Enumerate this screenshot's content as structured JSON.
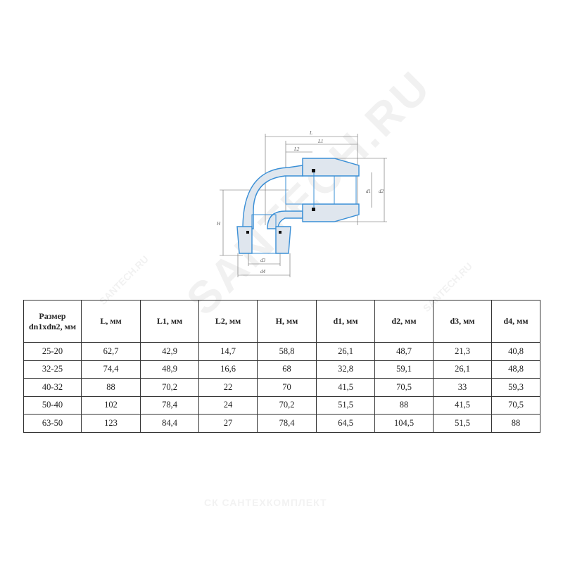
{
  "drawing": {
    "labels": {
      "L": "L",
      "L1": "L1",
      "L2": "L2",
      "H": "H",
      "d1": "d1",
      "d2": "d2",
      "d3": "d3",
      "d4": "d4"
    },
    "colors": {
      "outline": "#3a8fd6",
      "hatch": "#b9c6d3",
      "seal": "#111111",
      "dim": "#666666"
    }
  },
  "table": {
    "headers": [
      "Размер dn1xdn2, мм",
      "L, мм",
      "L1, мм",
      "L2, мм",
      "H, мм",
      "d1, мм",
      "d2, мм",
      "d3, мм",
      "d4, мм"
    ],
    "rows": [
      [
        "25-20",
        "62,7",
        "42,9",
        "14,7",
        "58,8",
        "26,1",
        "48,7",
        "21,3",
        "40,8"
      ],
      [
        "32-25",
        "74,4",
        "48,9",
        "16,6",
        "68",
        "32,8",
        "59,1",
        "26,1",
        "48,8"
      ],
      [
        "40-32",
        "88",
        "70,2",
        "22",
        "70",
        "41,5",
        "70,5",
        "33",
        "59,3"
      ],
      [
        "50-40",
        "102",
        "78,4",
        "24",
        "70,2",
        "51,5",
        "88",
        "41,5",
        "70,5"
      ],
      [
        "63-50",
        "123",
        "84,4",
        "27",
        "78,4",
        "64,5",
        "104,5",
        "51,5",
        "88"
      ]
    ]
  },
  "watermarks": {
    "main": "SANTECH.RU",
    "small": "SANTECH.RU",
    "bottom": "СК САНТЕХКОМПЛЕКТ"
  }
}
